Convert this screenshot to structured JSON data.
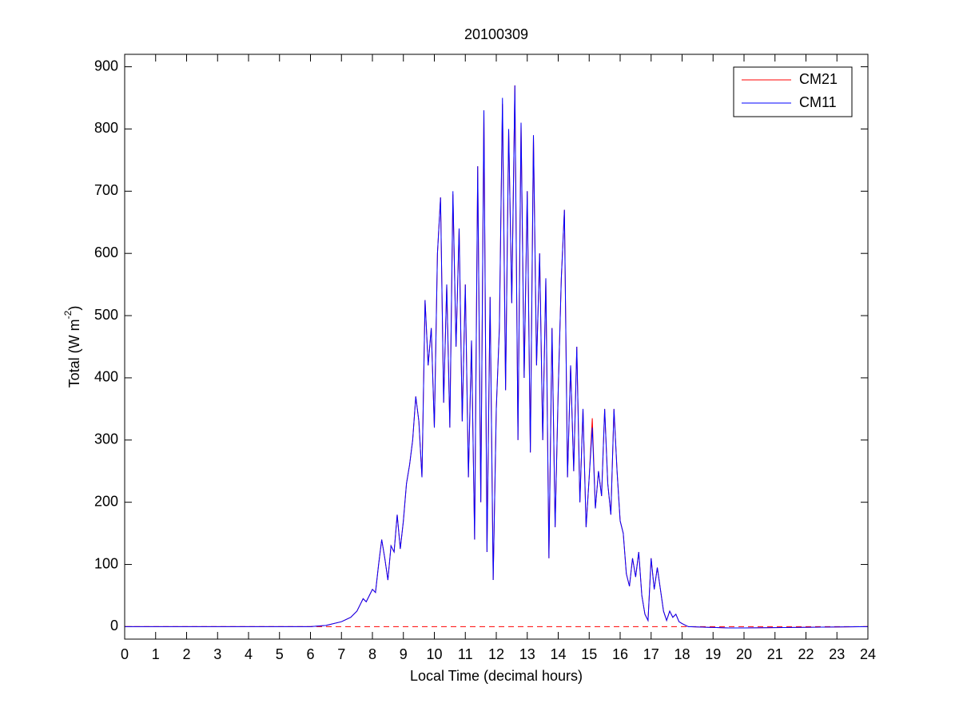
{
  "chart_data": {
    "type": "line",
    "title": "20100309",
    "xlabel": "Local Time (decimal hours)",
    "ylabel": [
      "Total (W m",
      "-2",
      ")"
    ],
    "x": [
      0,
      6,
      6.5,
      7,
      7.3,
      7.5,
      7.6,
      7.7,
      7.8,
      7.9,
      8.0,
      8.1,
      8.2,
      8.3,
      8.4,
      8.5,
      8.6,
      8.7,
      8.8,
      8.9,
      9.0,
      9.1,
      9.2,
      9.3,
      9.4,
      9.5,
      9.6,
      9.7,
      9.8,
      9.9,
      10.0,
      10.1,
      10.2,
      10.3,
      10.4,
      10.5,
      10.6,
      10.7,
      10.8,
      10.9,
      11.0,
      11.1,
      11.2,
      11.3,
      11.4,
      11.5,
      11.6,
      11.7,
      11.8,
      11.9,
      12.0,
      12.1,
      12.2,
      12.3,
      12.4,
      12.5,
      12.6,
      12.7,
      12.8,
      12.9,
      13.0,
      13.1,
      13.2,
      13.3,
      13.4,
      13.5,
      13.6,
      13.7,
      13.8,
      13.9,
      14.0,
      14.1,
      14.2,
      14.3,
      14.4,
      14.5,
      14.6,
      14.7,
      14.8,
      14.9,
      15.0,
      15.1,
      15.2,
      15.3,
      15.4,
      15.5,
      15.6,
      15.7,
      15.8,
      15.9,
      16.0,
      16.1,
      16.2,
      16.3,
      16.4,
      16.5,
      16.6,
      16.7,
      16.8,
      16.9,
      17.0,
      17.1,
      17.2,
      17.3,
      17.4,
      17.5,
      17.6,
      17.7,
      17.8,
      17.9,
      18.0,
      18.2,
      19.5,
      20,
      24
    ],
    "series": [
      {
        "name": "CM21",
        "color": "#ff0000",
        "values": [
          0,
          0,
          2,
          8,
          15,
          25,
          35,
          45,
          40,
          50,
          60,
          55,
          100,
          140,
          110,
          75,
          130,
          120,
          180,
          125,
          170,
          230,
          260,
          300,
          370,
          330,
          240,
          525,
          420,
          480,
          320,
          600,
          690,
          360,
          550,
          320,
          695,
          450,
          640,
          330,
          550,
          240,
          460,
          140,
          740,
          200,
          830,
          120,
          530,
          75,
          350,
          480,
          840,
          380,
          800,
          520,
          870,
          300,
          810,
          400,
          700,
          280,
          790,
          420,
          600,
          300,
          560,
          110,
          480,
          160,
          380,
          560,
          670,
          240,
          420,
          250,
          450,
          200,
          350,
          160,
          240,
          335,
          190,
          250,
          210,
          350,
          230,
          180,
          350,
          250,
          170,
          150,
          85,
          65,
          110,
          80,
          120,
          50,
          20,
          10,
          110,
          60,
          95,
          60,
          25,
          10,
          25,
          15,
          20,
          8,
          5,
          0,
          -2,
          -2,
          0
        ]
      },
      {
        "name": "CM11",
        "color": "#0000ff",
        "values": [
          0,
          0,
          2,
          8,
          15,
          25,
          35,
          45,
          40,
          50,
          60,
          55,
          100,
          140,
          110,
          75,
          130,
          120,
          180,
          125,
          170,
          230,
          260,
          300,
          370,
          330,
          240,
          525,
          420,
          480,
          320,
          600,
          690,
          360,
          550,
          320,
          700,
          450,
          640,
          330,
          550,
          240,
          460,
          140,
          740,
          200,
          830,
          120,
          530,
          75,
          350,
          480,
          850,
          380,
          800,
          520,
          870,
          300,
          810,
          400,
          700,
          280,
          790,
          420,
          600,
          300,
          560,
          110,
          480,
          160,
          380,
          560,
          670,
          240,
          420,
          250,
          450,
          200,
          350,
          160,
          240,
          320,
          190,
          250,
          210,
          350,
          230,
          180,
          350,
          250,
          170,
          150,
          85,
          65,
          110,
          80,
          120,
          50,
          20,
          10,
          110,
          60,
          95,
          60,
          25,
          10,
          25,
          15,
          20,
          8,
          5,
          0,
          -2,
          -2,
          0
        ]
      }
    ],
    "hline": {
      "y": 0,
      "color": "#ff0000",
      "style": "dashed"
    },
    "xlim": [
      0,
      24
    ],
    "xticks": [
      0,
      1,
      2,
      3,
      4,
      5,
      6,
      7,
      8,
      9,
      10,
      11,
      12,
      13,
      14,
      15,
      16,
      17,
      18,
      19,
      20,
      21,
      22,
      23,
      24
    ],
    "ylim": [
      -20,
      920
    ],
    "yticks": [
      0,
      100,
      200,
      300,
      400,
      500,
      600,
      700,
      800,
      900
    ],
    "legend": "upper right"
  }
}
